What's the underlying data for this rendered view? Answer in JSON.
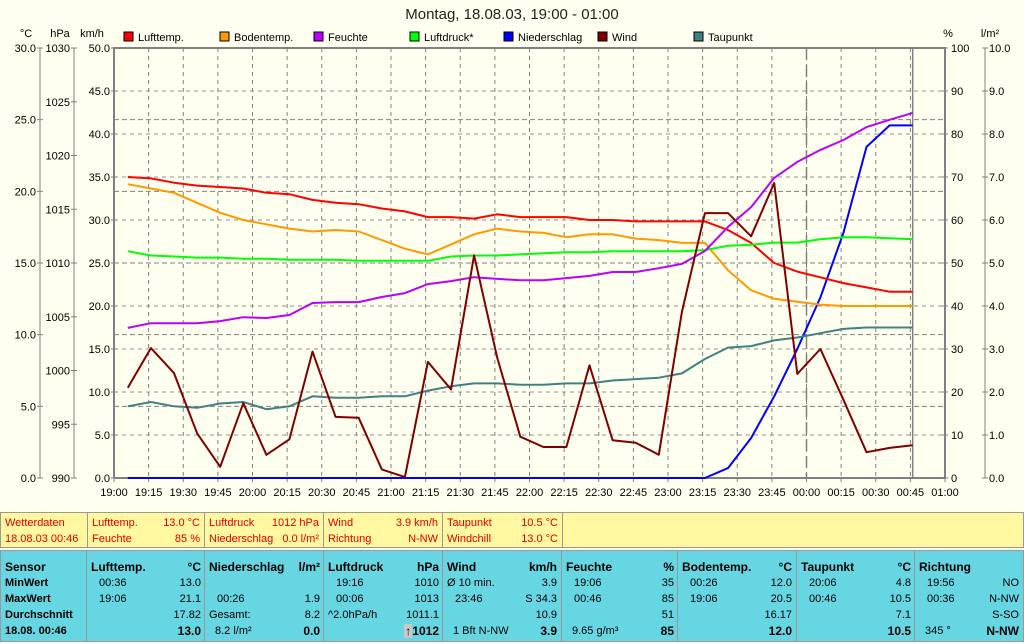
{
  "title": "Montag, 18.08.03, 19:00 - 01:00",
  "axes": {
    "left_units": [
      "°C",
      "hPa",
      "km/h"
    ],
    "right_units": [
      "%",
      "l/m²"
    ],
    "celsius": [
      "30.0",
      "25.0",
      "20.0",
      "15.0",
      "10.0",
      "5.0",
      "0.0"
    ],
    "hpa": [
      "1030",
      "1025",
      "1020",
      "1015",
      "1010",
      "1005",
      "1000",
      "995",
      "990"
    ],
    "kmh": [
      "50.0",
      "45.0",
      "40.0",
      "35.0",
      "30.0",
      "25.0",
      "20.0",
      "15.0",
      "10.0",
      "5.0",
      "0.0"
    ],
    "percent": [
      "100",
      "90",
      "80",
      "70",
      "60",
      "50",
      "40",
      "30",
      "20",
      "10",
      "0"
    ],
    "lm2": [
      "10.0",
      "9.0",
      "8.0",
      "7.0",
      "6.0",
      "5.0",
      "4.0",
      "3.0",
      "2.0",
      "1.0",
      "0.0"
    ],
    "time": [
      "19:00",
      "19:15",
      "19:30",
      "19:45",
      "20:00",
      "20:15",
      "20:30",
      "20:45",
      "21:00",
      "21:15",
      "21:30",
      "21:45",
      "22:00",
      "22:15",
      "22:30",
      "22:45",
      "23:00",
      "23:15",
      "23:30",
      "23:45",
      "00:00",
      "00:15",
      "00:30",
      "00:45",
      "01:00"
    ]
  },
  "chart_data": {
    "type": "line",
    "title": "Montag, 18.08.03, 19:00 - 01:00",
    "x": [
      "19:06",
      "19:16",
      "19:26",
      "19:36",
      "19:46",
      "19:56",
      "20:06",
      "20:16",
      "20:26",
      "20:36",
      "20:46",
      "20:56",
      "21:06",
      "21:16",
      "21:26",
      "21:36",
      "21:46",
      "21:56",
      "22:06",
      "22:16",
      "22:26",
      "22:36",
      "22:46",
      "22:56",
      "23:06",
      "23:16",
      "23:26",
      "23:36",
      "23:46",
      "23:56",
      "00:06",
      "00:16",
      "00:26",
      "00:36",
      "00:46"
    ],
    "xrange": [
      "19:00",
      "01:00"
    ],
    "axes_ranges": {
      "celsius": [
        0,
        30
      ],
      "hpa": [
        990,
        1030
      ],
      "kmh": [
        0,
        50
      ],
      "percent": [
        0,
        100
      ],
      "lm2": [
        0,
        10
      ]
    },
    "grid": true,
    "legend_placement": "top",
    "series": [
      {
        "name": "Lufttemp.",
        "color": "#FF0000",
        "axis": "celsius",
        "values": [
          21.0,
          20.9,
          20.6,
          20.4,
          20.3,
          20.2,
          19.9,
          19.8,
          19.4,
          19.2,
          19.1,
          18.8,
          18.6,
          18.2,
          18.2,
          18.1,
          18.4,
          18.2,
          18.2,
          18.2,
          18.0,
          18.0,
          17.9,
          17.9,
          17.9,
          17.9,
          17.3,
          16.4,
          15.0,
          14.4,
          14.0,
          13.6,
          13.3,
          13.0,
          13.0
        ]
      },
      {
        "name": "Bodentemp.",
        "color": "#FF9900",
        "axis": "celsius",
        "values": [
          20.5,
          20.2,
          19.9,
          19.2,
          18.5,
          18.0,
          17.7,
          17.4,
          17.2,
          17.3,
          17.2,
          16.6,
          16.0,
          15.6,
          16.3,
          17.0,
          17.4,
          17.2,
          17.1,
          16.8,
          17.0,
          17.0,
          16.7,
          16.6,
          16.4,
          16.4,
          14.5,
          13.1,
          12.5,
          12.3,
          12.1,
          12.0,
          12.0,
          12.0,
          12.0
        ]
      },
      {
        "name": "Feuchte",
        "color": "#BB00FF",
        "axis": "percent",
        "values": [
          34.9,
          36.0,
          36.0,
          36.0,
          36.5,
          37.4,
          37.2,
          37.9,
          40.7,
          40.9,
          40.9,
          42.1,
          43.0,
          45.1,
          45.8,
          46.7,
          46.3,
          46.0,
          46.0,
          46.5,
          47.0,
          47.9,
          47.9,
          48.8,
          49.8,
          52.8,
          58.4,
          63.0,
          69.8,
          73.5,
          76.3,
          78.6,
          81.6,
          83.3,
          84.9
        ]
      },
      {
        "name": "Luftdruck*",
        "color": "#00FF00",
        "axis": "hpa",
        "values": [
          1011.1,
          1010.7,
          1010.6,
          1010.5,
          1010.5,
          1010.4,
          1010.4,
          1010.3,
          1010.3,
          1010.3,
          1010.2,
          1010.2,
          1010.2,
          1010.2,
          1010.6,
          1010.7,
          1010.7,
          1010.8,
          1010.9,
          1011.0,
          1011.0,
          1011.1,
          1011.1,
          1011.1,
          1011.1,
          1011.2,
          1011.6,
          1011.7,
          1011.9,
          1011.9,
          1012.2,
          1012.4,
          1012.4,
          1012.3,
          1012.2
        ]
      },
      {
        "name": "Niederschlag",
        "color": "#0000FF",
        "axis": "lm2",
        "values": [
          0,
          0,
          0,
          0,
          0,
          0,
          0,
          0,
          0,
          0,
          0,
          0,
          0,
          0,
          0,
          0,
          0,
          0,
          0,
          0,
          0,
          0,
          0,
          0,
          0,
          0,
          0.23,
          0.93,
          1.9,
          3.0,
          4.2,
          5.7,
          7.7,
          8.2,
          8.2
        ]
      },
      {
        "name": "Wind",
        "color": "#800000",
        "axis": "kmh",
        "values": [
          10.5,
          15.1,
          12.2,
          5.2,
          1.3,
          8.7,
          2.7,
          4.5,
          14.7,
          7.1,
          7.0,
          1.0,
          0.1,
          13.5,
          10.3,
          25.9,
          14.0,
          4.8,
          3.6,
          3.6,
          13.1,
          4.4,
          4.1,
          2.7,
          19.3,
          30.8,
          30.8,
          28.1,
          34.3,
          12.1,
          15.0,
          9.1,
          3.0,
          3.5,
          3.8
        ]
      },
      {
        "name": "Taupunkt",
        "color": "#408080",
        "axis": "celsius",
        "values": [
          5.0,
          5.3,
          5.0,
          4.9,
          5.2,
          5.3,
          4.8,
          5.0,
          5.7,
          5.6,
          5.6,
          5.7,
          5.7,
          6.1,
          6.4,
          6.6,
          6.6,
          6.5,
          6.5,
          6.6,
          6.6,
          6.8,
          6.9,
          7.0,
          7.3,
          8.3,
          9.1,
          9.2,
          9.6,
          9.8,
          10.1,
          10.4,
          10.5,
          10.5,
          10.5
        ]
      }
    ]
  },
  "current": {
    "c0": {
      "l1": "Wetterdaten",
      "l2": "18.08.03 00:46"
    },
    "c1": {
      "k1": "Lufttemp.",
      "v1": "13.0 °C",
      "k2": "Feuchte",
      "v2": "85 %"
    },
    "c2": {
      "k1": "Luftdruck",
      "v1": "1012 hPa",
      "k2": "Niederschlag",
      "v2": "0.0 l/m²"
    },
    "c3": {
      "k1": "Wind",
      "v1": "3.9 km/h",
      "k2": "Richtung",
      "v2": "N-NW"
    },
    "c4": {
      "k1": "Taupunkt",
      "v1": "10.5 °C",
      "k2": "Windchill",
      "v2": "13.0 °C"
    }
  },
  "stats": {
    "labels": {
      "h": "Sensor",
      "min": "MinWert",
      "max": "MaxWert",
      "avg": "Durchschnitt",
      "now": "18.08. 00:46"
    },
    "cols": [
      {
        "h": "Lufttemp.",
        "u": "°C",
        "min_t": "00:36",
        "min_v": "13.0",
        "max_t": "19:06",
        "max_v": "21.1",
        "avg_l": "",
        "avg_v": "17.82",
        "now_l": "",
        "now_v": "13.0"
      },
      {
        "h": "Niederschlag",
        "u": "l/m²",
        "min_t": "",
        "min_v": "",
        "max_t": "00:26",
        "max_v": "1.9",
        "avg_l": "Gesamt:",
        "avg_v": "8.2",
        "now_l": "8.2 l/m²",
        "now_v": "0.0"
      },
      {
        "h": "Luftdruck",
        "u": "hPa",
        "min_t": "19:16",
        "min_v": "1010",
        "max_t": "00:06",
        "max_v": "1013",
        "avg_l": "^2.0hPa/h",
        "avg_v": "1011.1",
        "now_l": "",
        "now_v": "1012",
        "trend": "↑"
      },
      {
        "h": "Wind",
        "u": "km/h",
        "min_t": "Ø 10 min.",
        "min_v": "3.9",
        "max_t": "23:46",
        "max_v": "S 34.3",
        "avg_l": "",
        "avg_v": "10.9",
        "now_l": "1 Bft N-NW",
        "now_v": "3.9"
      },
      {
        "h": "Feuchte",
        "u": "%",
        "min_t": "19:06",
        "min_v": "35",
        "max_t": "00:46",
        "max_v": "85",
        "avg_l": "",
        "avg_v": "51",
        "now_l": "9.65 g/m³",
        "now_v": "85"
      },
      {
        "h": "Bodentemp.",
        "u": "°C",
        "min_t": "00:26",
        "min_v": "12.0",
        "max_t": "19:06",
        "max_v": "20.5",
        "avg_l": "",
        "avg_v": "16.17",
        "now_l": "",
        "now_v": "12.0"
      },
      {
        "h": "Taupunkt",
        "u": "°C",
        "min_t": "20:06",
        "min_v": "4.8",
        "max_t": "00:46",
        "max_v": "10.5",
        "avg_l": "",
        "avg_v": "7.1",
        "now_l": "",
        "now_v": "10.5"
      },
      {
        "h": "Richtung",
        "u": "",
        "min_t": "19:56",
        "min_v": "NO",
        "max_t": "00:36",
        "max_v": "N-NW",
        "avg_l": "",
        "avg_v": "S-SO",
        "now_l": "345 °",
        "now_v": "N-NW"
      }
    ]
  }
}
